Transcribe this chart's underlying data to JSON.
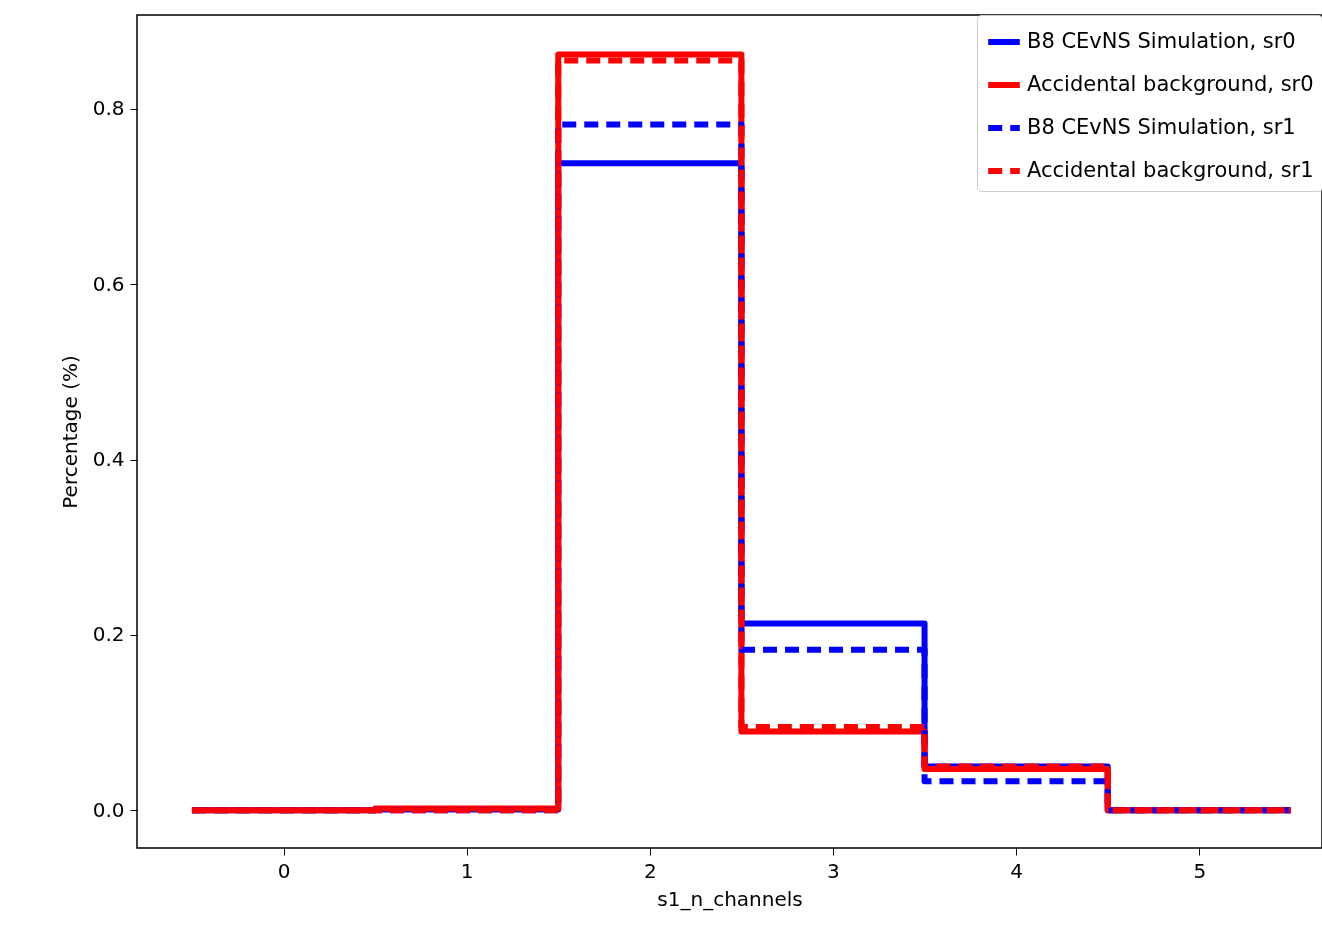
{
  "chart_data": {
    "type": "histogram",
    "xlabel": "s1_n_channels",
    "ylabel": "Percentage (%)",
    "bins": [
      -0.5,
      0.5,
      1.5,
      2.5,
      3.5,
      4.5,
      5.5
    ],
    "series": [
      {
        "name": "B8 CEvNS Simulation, sr0",
        "color": "#0000ff",
        "line_style": "solid",
        "values": [
          0,
          0.001,
          0.738,
          0.213,
          0.05,
          0
        ]
      },
      {
        "name": "Accidental background, sr0",
        "color": "#ff0000",
        "line_style": "solid",
        "values": [
          0,
          0.002,
          0.862,
          0.09,
          0.047,
          0
        ]
      },
      {
        "name": "B8 CEvNS Simulation, sr1",
        "color": "#0000fe",
        "line_style": "dashed",
        "values": [
          0,
          0,
          0.782,
          0.183,
          0.033,
          0
        ]
      },
      {
        "name": "Accidental background, sr1",
        "color": "#fe0000",
        "line_style": "dashed",
        "values": [
          0,
          0,
          0.855,
          0.095,
          0.05,
          0
        ]
      }
    ],
    "xlim": [
      -0.8,
      5.67
    ],
    "ylim": [
      -0.043,
      0.907
    ],
    "xticks": [
      0,
      1,
      2,
      3,
      4,
      5
    ],
    "yticks": [
      {
        "value": 0,
        "label": "0.0"
      },
      {
        "value": 0.2,
        "label": "0.2"
      },
      {
        "value": 0.4,
        "label": "0.4"
      },
      {
        "value": 0.6,
        "label": "0.6"
      },
      {
        "value": 0.8,
        "label": "0.8"
      }
    ],
    "grid": false,
    "legend": "top right"
  }
}
